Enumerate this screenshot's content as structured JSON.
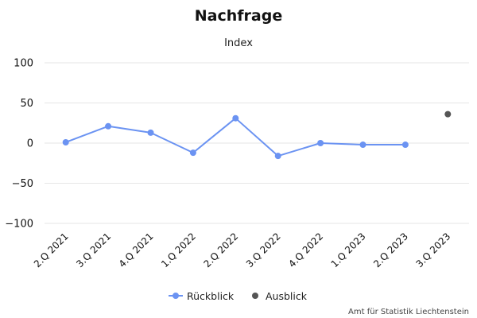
{
  "chart_data": {
    "type": "line",
    "title": "Nachfrage",
    "subtitle": "Index",
    "categories": [
      "2.Q 2021",
      "3.Q 2021",
      "4.Q 2021",
      "1.Q 2022",
      "2.Q 2022",
      "3.Q 2022",
      "4.Q 2022",
      "1.Q 2023",
      "2.Q 2023",
      "3.Q 2023"
    ],
    "ylim": [
      -100,
      100
    ],
    "yticks": [
      -100,
      -50,
      0,
      50,
      100
    ],
    "ytick_labels": [
      "−100",
      "−50",
      "0",
      "50",
      "100"
    ],
    "grid": true,
    "legend_position": "bottom-center",
    "series": [
      {
        "name": "Rückblick",
        "color": "#6b93f2",
        "style": "line-with-markers",
        "values": [
          1,
          21,
          13,
          -12,
          31,
          -16,
          0,
          -2,
          -2,
          null
        ]
      },
      {
        "name": "Ausblick",
        "color": "#555555",
        "style": "markers-only",
        "values": [
          null,
          null,
          null,
          null,
          null,
          null,
          null,
          null,
          null,
          36
        ]
      }
    ],
    "credit": "Amt für Statistik Liechtenstein"
  }
}
